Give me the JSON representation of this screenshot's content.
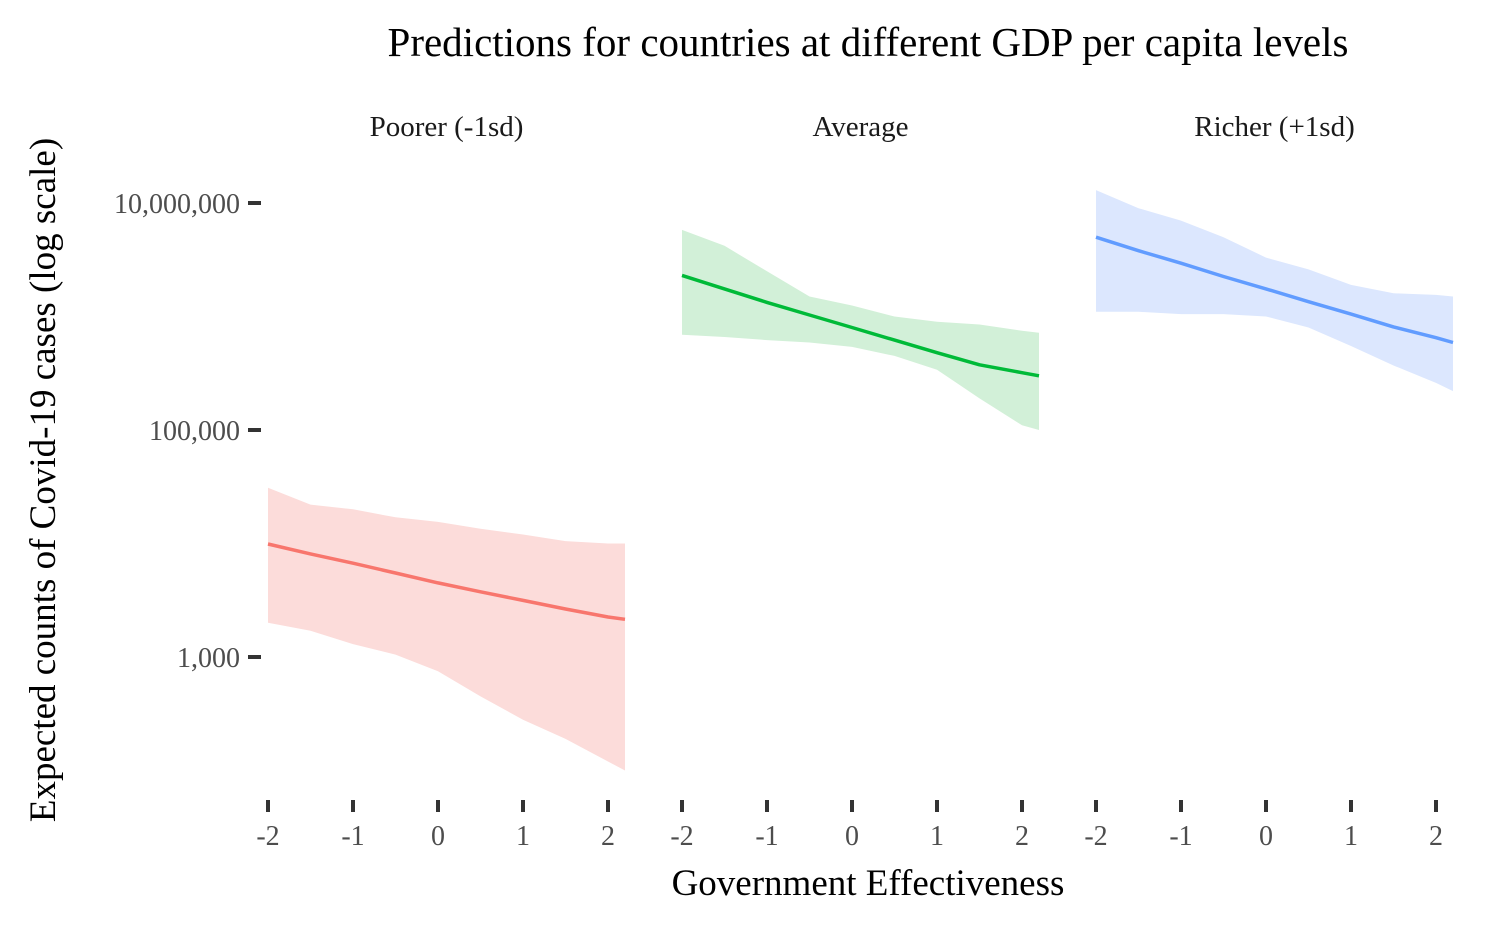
{
  "chart_data": {
    "type": "line",
    "title": "Predictions for countries at different GDP per capita levels",
    "xlabel": "Government Effectiveness",
    "ylabel": "Expected counts of Covid-19 cases (log scale)",
    "y_scale": "log10",
    "ylim": [
      100,
      15000000
    ],
    "y_ticks": [
      1000,
      100000,
      10000000
    ],
    "y_tick_labels": [
      "1,000",
      "100,000",
      "10,000,000"
    ],
    "x_ticks": [
      -2,
      -1,
      0,
      1,
      2
    ],
    "x_tick_labels": [
      "-2",
      "-1",
      "0",
      "1",
      "2"
    ],
    "xlim": [
      -2.1,
      2.3
    ],
    "grid": false,
    "legend": "none",
    "panels": [
      {
        "label": "Poorer (-1sd)",
        "color": "#F8766D",
        "ribbon_color": "#FCDCDA",
        "x": [
          -2,
          -1.5,
          -1,
          -0.5,
          0,
          0.5,
          1,
          1.5,
          2,
          2.2
        ],
        "y": [
          9900,
          8100,
          6700,
          5500,
          4500,
          3750,
          3150,
          2650,
          2250,
          2150
        ],
        "lower": [
          2000,
          1700,
          1300,
          1050,
          750,
          450,
          280,
          190,
          120,
          100
        ],
        "upper": [
          31000,
          22000,
          20000,
          17000,
          15500,
          13500,
          12000,
          10500,
          10000,
          10000
        ]
      },
      {
        "label": "Average",
        "color": "#00BA38",
        "ribbon_color": "#D2F0D8",
        "x": [
          -2,
          -1.5,
          -1,
          -0.5,
          0,
          0.5,
          1,
          1.5,
          2,
          2.2
        ],
        "y": [
          2300000,
          1750000,
          1330000,
          1030000,
          800000,
          620000,
          480000,
          375000,
          320000,
          300000
        ],
        "lower": [
          690000,
          660000,
          620000,
          590000,
          540000,
          450000,
          340000,
          190000,
          110000,
          100000
        ],
        "upper": [
          5800000,
          4200000,
          2500000,
          1500000,
          1250000,
          1000000,
          900000,
          850000,
          750000,
          720000
        ]
      },
      {
        "label": "Richer (+1sd)",
        "color": "#619CFF",
        "ribbon_color": "#DCE7FE",
        "x": [
          -2,
          -1.5,
          -1,
          -0.5,
          0,
          0.5,
          1,
          1.5,
          2,
          2.2
        ],
        "y": [
          5000000,
          3800000,
          2950000,
          2250000,
          1750000,
          1350000,
          1050000,
          810000,
          650000,
          590000
        ],
        "lower": [
          1100000,
          1100000,
          1050000,
          1050000,
          1000000,
          800000,
          550000,
          370000,
          260000,
          220000
        ],
        "upper": [
          13000000,
          9000000,
          7000000,
          5000000,
          3300000,
          2600000,
          1900000,
          1600000,
          1550000,
          1500000
        ]
      }
    ]
  }
}
